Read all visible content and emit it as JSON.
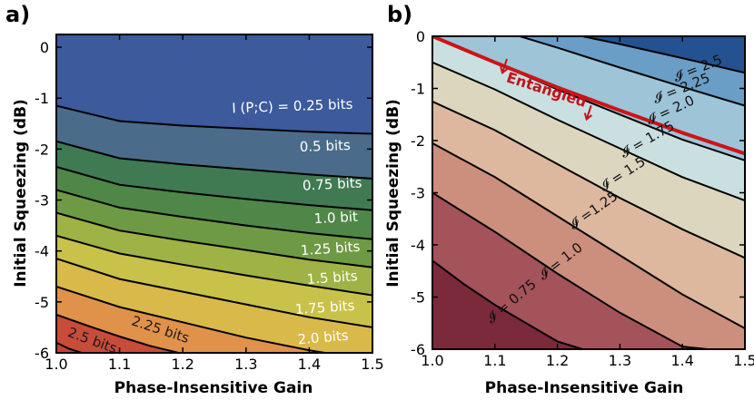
{
  "chart_data": [
    {
      "panel": "a)",
      "type": "contour",
      "xlabel": "Phase-Insensitive Gain",
      "ylabel": "Initial  Squeezing (dB)",
      "xlim": [
        1.0,
        1.5
      ],
      "ylim": [
        -6,
        0.25
      ],
      "xticks": [
        "1.0",
        "1.1",
        "1.2",
        "1.3",
        "1.4",
        "1.5"
      ],
      "yticks": [
        "0",
        "-1",
        "-2",
        "-3",
        "-4",
        "-5",
        "-6"
      ],
      "levels": [
        {
          "label": "I (P;C) = 0.25 bits",
          "value": 0.25,
          "color": "#3e5f9c",
          "x": [
            1.0,
            1.1,
            1.2,
            1.3,
            1.4,
            1.5
          ],
          "y": [
            -1.15,
            -1.45,
            -1.54,
            -1.6,
            -1.66,
            -1.7
          ]
        },
        {
          "label": "0.5 bits",
          "value": 0.5,
          "color": "#4a6c8a",
          "x": [
            1.0,
            1.1,
            1.2,
            1.3,
            1.4,
            1.5
          ],
          "y": [
            -1.85,
            -2.18,
            -2.3,
            -2.4,
            -2.5,
            -2.58
          ]
        },
        {
          "label": "0.75 bits",
          "value": 0.75,
          "color": "#3f7a53",
          "x": [
            1.0,
            1.1,
            1.2,
            1.3,
            1.4,
            1.5
          ],
          "y": [
            -2.35,
            -2.7,
            -2.85,
            -2.98,
            -3.1,
            -3.2
          ]
        },
        {
          "label": "1.0 bit",
          "value": 1.0,
          "color": "#4f8748",
          "x": [
            1.0,
            1.1,
            1.2,
            1.3,
            1.4,
            1.5
          ],
          "y": [
            -2.8,
            -3.15,
            -3.33,
            -3.5,
            -3.65,
            -3.77
          ]
        },
        {
          "label": "1.25 bits",
          "value": 1.25,
          "color": "#6f9a45",
          "x": [
            1.0,
            1.1,
            1.2,
            1.3,
            1.4,
            1.5
          ],
          "y": [
            -3.25,
            -3.6,
            -3.8,
            -3.98,
            -4.17,
            -4.32
          ]
        },
        {
          "label": "1.5 bits",
          "value": 1.5,
          "color": "#9fb245",
          "x": [
            1.0,
            1.1,
            1.2,
            1.3,
            1.4,
            1.5
          ],
          "y": [
            -3.7,
            -4.05,
            -4.27,
            -4.48,
            -4.68,
            -4.87
          ]
        },
        {
          "label": "1.75 bits",
          "value": 1.75,
          "color": "#c9c24a",
          "x": [
            1.0,
            1.1,
            1.2,
            1.3,
            1.4,
            1.5
          ],
          "y": [
            -4.15,
            -4.55,
            -4.8,
            -5.05,
            -5.3,
            -5.5
          ]
        },
        {
          "label": "2.0 bits",
          "value": 2.0,
          "color": "#d9b94a",
          "x": [
            1.0,
            1.1,
            1.2,
            1.3,
            1.4,
            1.5
          ],
          "y": [
            -4.7,
            -5.1,
            -5.4,
            -5.7,
            -5.95,
            -6.15
          ]
        },
        {
          "label": "2.25 bits",
          "value": 2.25,
          "color": "#e0924a",
          "x": [
            1.0,
            1.05,
            1.1,
            1.15,
            1.2,
            1.25,
            1.3
          ],
          "y": [
            -5.25,
            -5.47,
            -5.68,
            -5.87,
            -6.02,
            -6.15,
            -6.25
          ]
        },
        {
          "label": "2.5 bits",
          "value": 2.5,
          "color": "#c94b3a",
          "x": [
            1.0,
            1.02,
            1.05,
            1.07,
            1.1
          ],
          "y": [
            -5.8,
            -5.92,
            -6.04,
            -6.12,
            -6.2
          ]
        }
      ],
      "background_top": "#3c5a9c",
      "background_bottom": "#c9403a"
    },
    {
      "panel": "b)",
      "type": "contour",
      "xlabel": "Phase-Insensitive Gain",
      "ylabel": "Initial Squeezing (dB)",
      "xlim": [
        1.0,
        1.5
      ],
      "ylim": [
        -6,
        0
      ],
      "xticks": [
        "1.0",
        "1.1",
        "1.2",
        "1.3",
        "1.4",
        "1.5"
      ],
      "yticks": [
        "0",
        "-1",
        "-2",
        "-3",
        "-4",
        "-5",
        "-6"
      ],
      "levels": [
        {
          "label": "𝓘 = 2.5",
          "value": 2.5,
          "color": "#2e5d99",
          "x": [
            1.24,
            1.3,
            1.4,
            1.5
          ],
          "y": [
            0,
            -0.15,
            -0.42,
            -0.7
          ]
        },
        {
          "label": "𝓘 = 2.25",
          "value": 2.25,
          "color": "#6a9ec7",
          "x": [
            1.14,
            1.2,
            1.3,
            1.4,
            1.5
          ],
          "y": [
            0,
            -0.22,
            -0.6,
            -0.97,
            -1.33
          ]
        },
        {
          "label": "𝓘 = 2.0",
          "value": 2.0,
          "color": "#9ec4d8",
          "x": [
            1.0,
            1.1,
            1.2,
            1.3,
            1.4,
            1.5
          ],
          "y": [
            0,
            -0.5,
            -1.02,
            -1.5,
            -1.98,
            -2.38
          ]
        },
        {
          "label": "𝓘 = 1.75",
          "value": 1.75,
          "color": "#cadfe0",
          "x": [
            1.0,
            1.1,
            1.2,
            1.3,
            1.4,
            1.5
          ],
          "y": [
            -0.5,
            -1.02,
            -1.6,
            -2.15,
            -2.7,
            -3.15
          ]
        },
        {
          "label": "𝓘 = 1.5",
          "value": 1.5,
          "color": "#dcd6bf",
          "x": [
            1.0,
            1.1,
            1.2,
            1.3,
            1.4,
            1.5
          ],
          "y": [
            -1.25,
            -1.8,
            -2.45,
            -3.1,
            -3.7,
            -4.25
          ]
        },
        {
          "label": "𝓘 =1.25",
          "value": 1.25,
          "color": "#ddb89e",
          "x": [
            1.0,
            1.1,
            1.2,
            1.3,
            1.4,
            1.5
          ],
          "y": [
            -2.05,
            -2.7,
            -3.45,
            -4.2,
            -4.95,
            -5.6
          ]
        },
        {
          "label": "𝓘 = 1.0",
          "value": 1.0,
          "color": "#cc8f7d",
          "x": [
            1.0,
            1.1,
            1.2,
            1.3,
            1.4,
            1.44
          ],
          "y": [
            -3.0,
            -3.75,
            -4.55,
            -5.3,
            -5.95,
            -6.0
          ]
        },
        {
          "label": "𝓘 = 0.75",
          "value": 0.75,
          "color": "#a4535a",
          "x": [
            1.0,
            1.05,
            1.1,
            1.15,
            1.2,
            1.24
          ],
          "y": [
            -4.3,
            -4.75,
            -5.15,
            -5.5,
            -5.85,
            -6.0
          ]
        }
      ],
      "below_last_color": "#7a2a3a",
      "above_first_color": "#245291",
      "entangled_boundary": {
        "x": [
          1.0,
          1.1,
          1.2,
          1.3,
          1.4,
          1.5
        ],
        "y": [
          0,
          -0.5,
          -0.98,
          -1.42,
          -1.85,
          -2.25
        ],
        "color": "#cc1417"
      },
      "entangled_label": "Entangled"
    }
  ]
}
